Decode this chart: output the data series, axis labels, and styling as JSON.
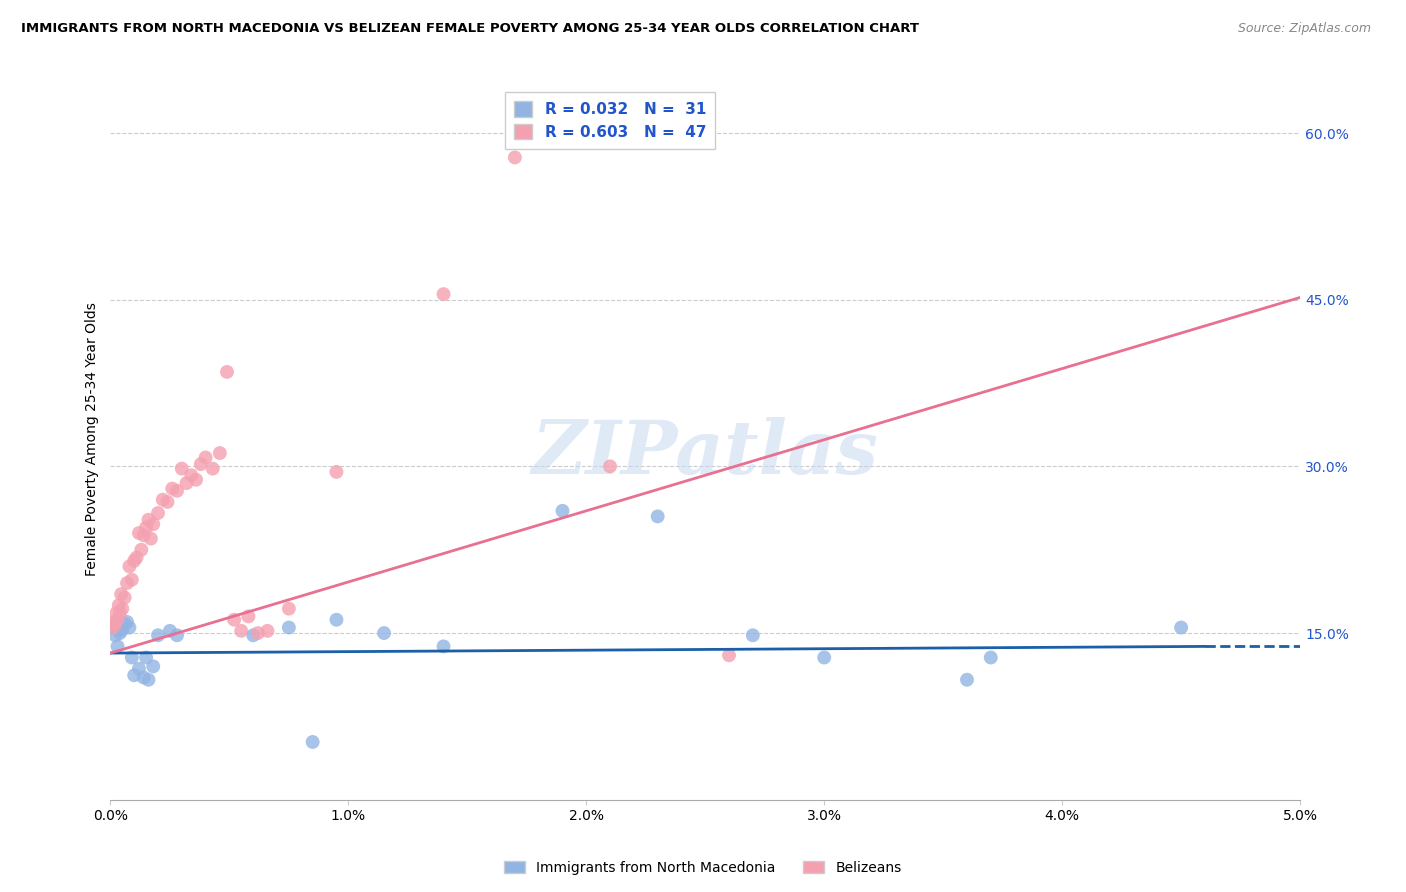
{
  "title": "IMMIGRANTS FROM NORTH MACEDONIA VS BELIZEAN FEMALE POVERTY AMONG 25-34 YEAR OLDS CORRELATION CHART",
  "source": "Source: ZipAtlas.com",
  "ylabel": "Female Poverty Among 25-34 Year Olds",
  "ylabel_right_values": [
    0.15,
    0.3,
    0.45,
    0.6
  ],
  "xmin": 0.0,
  "xmax": 0.05,
  "ymin": 0.0,
  "ymax": 0.65,
  "legend_label_blue": "Immigrants from North Macedonia",
  "legend_label_pink": "Belizeans",
  "blue_color": "#92b4e3",
  "pink_color": "#f4a0b0",
  "blue_line_color": "#1a5fa8",
  "pink_line_color": "#e87090",
  "watermark": "ZIPatlas",
  "blue_x": [
    0.0001,
    0.0002,
    0.0003,
    0.0004,
    0.0005,
    0.0006,
    0.0007,
    0.0008,
    0.0009,
    0.001,
    0.0012,
    0.0014,
    0.0015,
    0.0016,
    0.0018,
    0.002,
    0.0025,
    0.0028,
    0.006,
    0.0075,
    0.0095,
    0.0115,
    0.014,
    0.019,
    0.023,
    0.027,
    0.03,
    0.036,
    0.037,
    0.045,
    0.0085
  ],
  "blue_y": [
    0.155,
    0.148,
    0.138,
    0.15,
    0.153,
    0.158,
    0.16,
    0.155,
    0.128,
    0.112,
    0.118,
    0.11,
    0.128,
    0.108,
    0.12,
    0.148,
    0.152,
    0.148,
    0.148,
    0.155,
    0.162,
    0.15,
    0.138,
    0.26,
    0.255,
    0.148,
    0.128,
    0.108,
    0.128,
    0.155,
    0.052
  ],
  "pink_x": [
    0.0001,
    0.00015,
    0.0002,
    0.00025,
    0.0003,
    0.00035,
    0.0004,
    0.00045,
    0.0005,
    0.0006,
    0.0007,
    0.0008,
    0.0009,
    0.001,
    0.0011,
    0.0012,
    0.0013,
    0.0014,
    0.0015,
    0.0016,
    0.0017,
    0.0018,
    0.002,
    0.0022,
    0.0024,
    0.0026,
    0.0028,
    0.003,
    0.0032,
    0.0034,
    0.0036,
    0.0038,
    0.004,
    0.0043,
    0.0046,
    0.0049,
    0.0052,
    0.0055,
    0.0058,
    0.0062,
    0.0066,
    0.0075,
    0.0095,
    0.014,
    0.017,
    0.021,
    0.026
  ],
  "pink_y": [
    0.155,
    0.16,
    0.158,
    0.168,
    0.162,
    0.175,
    0.168,
    0.185,
    0.172,
    0.182,
    0.195,
    0.21,
    0.198,
    0.215,
    0.218,
    0.24,
    0.225,
    0.238,
    0.245,
    0.252,
    0.235,
    0.248,
    0.258,
    0.27,
    0.268,
    0.28,
    0.278,
    0.298,
    0.285,
    0.292,
    0.288,
    0.302,
    0.308,
    0.298,
    0.312,
    0.385,
    0.162,
    0.152,
    0.165,
    0.15,
    0.152,
    0.172,
    0.295,
    0.455,
    0.578,
    0.3,
    0.13
  ]
}
